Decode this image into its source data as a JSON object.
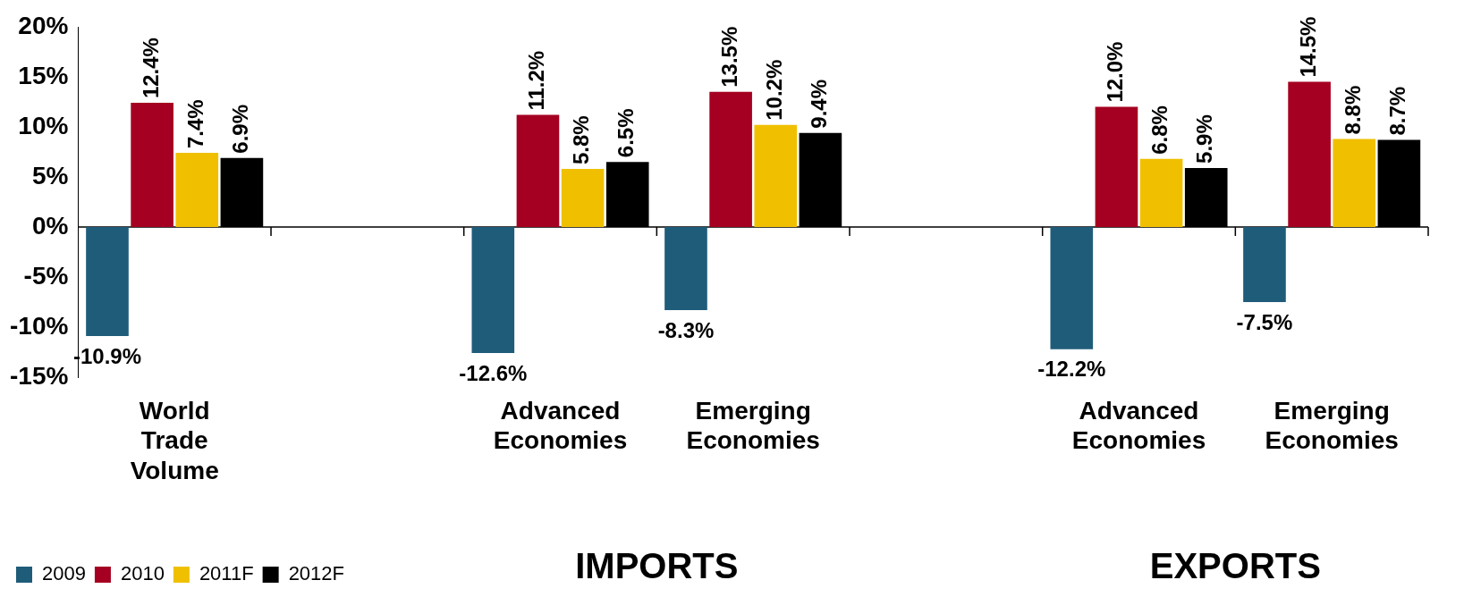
{
  "chart_data": {
    "type": "bar",
    "categories": [
      "World Trade Volume",
      null,
      "Advanced Economies",
      "Emerging Economies",
      null,
      "Advanced Economies",
      "Emerging Economies"
    ],
    "series": [
      {
        "name": "2009",
        "color": "#1f5c7a",
        "values": [
          -10.9,
          null,
          -12.6,
          -8.3,
          null,
          -12.2,
          -7.5
        ],
        "value_labels": [
          "-10.9%",
          null,
          "-12.6%",
          "-8.3%",
          null,
          "-12.2%",
          "-7.5%"
        ]
      },
      {
        "name": "2010",
        "color": "#a50021",
        "values": [
          12.4,
          null,
          11.2,
          13.5,
          null,
          12.0,
          14.5
        ],
        "value_labels": [
          "12.4%",
          null,
          "11.2%",
          "13.5%",
          null,
          "12.0%",
          "14.5%"
        ]
      },
      {
        "name": "2011F",
        "color": "#f0c000",
        "values": [
          7.4,
          null,
          5.8,
          10.2,
          null,
          6.8,
          8.8
        ],
        "value_labels": [
          "7.4%",
          null,
          "5.8%",
          "10.2%",
          null,
          "6.8%",
          "8.8%"
        ]
      },
      {
        "name": "2012F",
        "color": "#000000",
        "values": [
          6.9,
          null,
          6.5,
          9.4,
          null,
          5.9,
          8.7
        ],
        "value_labels": [
          "6.9%",
          null,
          "6.5%",
          "9.4%",
          null,
          "5.9%",
          "8.7%"
        ]
      }
    ],
    "ylim": [
      -15,
      20
    ],
    "yticks": [
      {
        "value": -15,
        "label": "-15%"
      },
      {
        "value": -10,
        "label": "-10%"
      },
      {
        "value": -5,
        "label": "-5%"
      },
      {
        "value": 0,
        "label": "0%"
      },
      {
        "value": 5,
        "label": "5%"
      },
      {
        "value": 10,
        "label": "10%"
      },
      {
        "value": 15,
        "label": "15%"
      },
      {
        "value": 20,
        "label": "20%"
      }
    ],
    "legend": "bottom left",
    "annotations": [
      "IMPORTS",
      "EXPORTS"
    ]
  }
}
